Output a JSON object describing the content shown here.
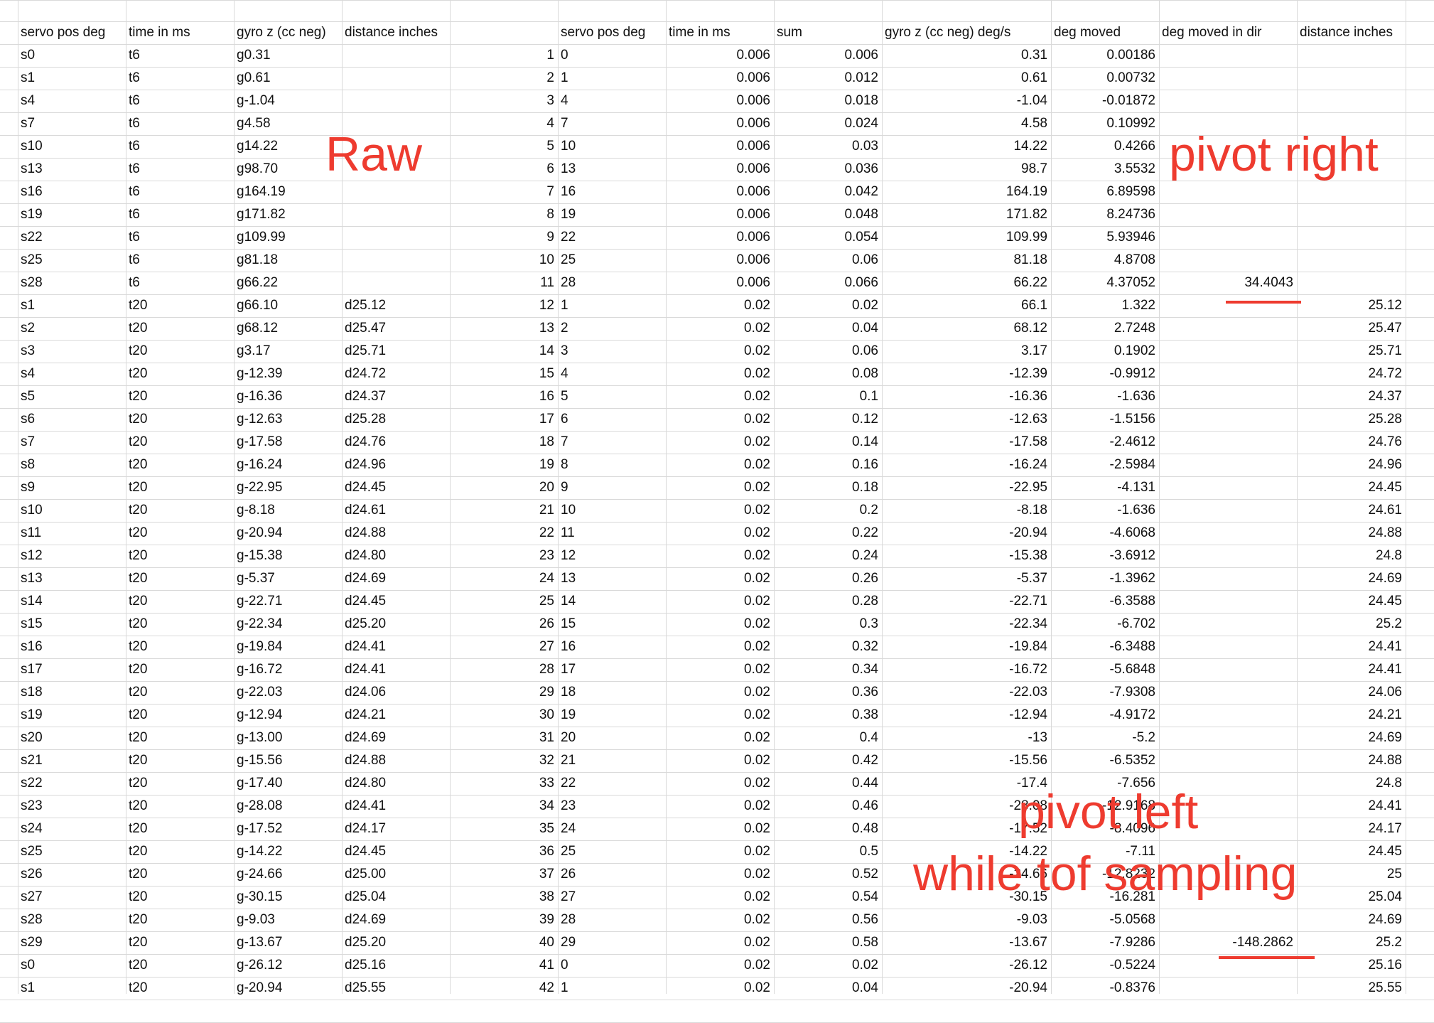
{
  "headers": {
    "left": [
      "servo pos deg",
      "time in ms",
      "gyro z (cc neg)",
      "distance inches"
    ],
    "right": [
      "servo pos deg",
      "time in ms",
      "sum",
      "gyro z (cc neg) deg/s",
      "deg moved",
      "deg moved in dir",
      "distance inches"
    ]
  },
  "rows": [
    [
      "s0",
      "t6",
      "g0.31",
      "",
      "1",
      "0",
      "0.006",
      "0.006",
      "0.31",
      "0.00186",
      "",
      ""
    ],
    [
      "s1",
      "t6",
      "g0.61",
      "",
      "2",
      "1",
      "0.006",
      "0.012",
      "0.61",
      "0.00732",
      "",
      ""
    ],
    [
      "s4",
      "t6",
      "g-1.04",
      "",
      "3",
      "4",
      "0.006",
      "0.018",
      "-1.04",
      "-0.01872",
      "",
      ""
    ],
    [
      "s7",
      "t6",
      "g4.58",
      "",
      "4",
      "7",
      "0.006",
      "0.024",
      "4.58",
      "0.10992",
      "",
      ""
    ],
    [
      "s10",
      "t6",
      "g14.22",
      "",
      "5",
      "10",
      "0.006",
      "0.03",
      "14.22",
      "0.4266",
      "",
      ""
    ],
    [
      "s13",
      "t6",
      "g98.70",
      "",
      "6",
      "13",
      "0.006",
      "0.036",
      "98.7",
      "3.5532",
      "",
      ""
    ],
    [
      "s16",
      "t6",
      "g164.19",
      "",
      "7",
      "16",
      "0.006",
      "0.042",
      "164.19",
      "6.89598",
      "",
      ""
    ],
    [
      "s19",
      "t6",
      "g171.82",
      "",
      "8",
      "19",
      "0.006",
      "0.048",
      "171.82",
      "8.24736",
      "",
      ""
    ],
    [
      "s22",
      "t6",
      "g109.99",
      "",
      "9",
      "22",
      "0.006",
      "0.054",
      "109.99",
      "5.93946",
      "",
      ""
    ],
    [
      "s25",
      "t6",
      "g81.18",
      "",
      "10",
      "25",
      "0.006",
      "0.06",
      "81.18",
      "4.8708",
      "",
      ""
    ],
    [
      "s28",
      "t6",
      "g66.22",
      "",
      "11",
      "28",
      "0.006",
      "0.066",
      "66.22",
      "4.37052",
      "34.4043",
      ""
    ],
    [
      "s1",
      "t20",
      "g66.10",
      "d25.12",
      "12",
      "1",
      "0.02",
      "0.02",
      "66.1",
      "1.322",
      "",
      "25.12"
    ],
    [
      "s2",
      "t20",
      "g68.12",
      "d25.47",
      "13",
      "2",
      "0.02",
      "0.04",
      "68.12",
      "2.7248",
      "",
      "25.47"
    ],
    [
      "s3",
      "t20",
      "g3.17",
      "d25.71",
      "14",
      "3",
      "0.02",
      "0.06",
      "3.17",
      "0.1902",
      "",
      "25.71"
    ],
    [
      "s4",
      "t20",
      "g-12.39",
      "d24.72",
      "15",
      "4",
      "0.02",
      "0.08",
      "-12.39",
      "-0.9912",
      "",
      "24.72"
    ],
    [
      "s5",
      "t20",
      "g-16.36",
      "d24.37",
      "16",
      "5",
      "0.02",
      "0.1",
      "-16.36",
      "-1.636",
      "",
      "24.37"
    ],
    [
      "s6",
      "t20",
      "g-12.63",
      "d25.28",
      "17",
      "6",
      "0.02",
      "0.12",
      "-12.63",
      "-1.5156",
      "",
      "25.28"
    ],
    [
      "s7",
      "t20",
      "g-17.58",
      "d24.76",
      "18",
      "7",
      "0.02",
      "0.14",
      "-17.58",
      "-2.4612",
      "",
      "24.76"
    ],
    [
      "s8",
      "t20",
      "g-16.24",
      "d24.96",
      "19",
      "8",
      "0.02",
      "0.16",
      "-16.24",
      "-2.5984",
      "",
      "24.96"
    ],
    [
      "s9",
      "t20",
      "g-22.95",
      "d24.45",
      "20",
      "9",
      "0.02",
      "0.18",
      "-22.95",
      "-4.131",
      "",
      "24.45"
    ],
    [
      "s10",
      "t20",
      "g-8.18",
      "d24.61",
      "21",
      "10",
      "0.02",
      "0.2",
      "-8.18",
      "-1.636",
      "",
      "24.61"
    ],
    [
      "s11",
      "t20",
      "g-20.94",
      "d24.88",
      "22",
      "11",
      "0.02",
      "0.22",
      "-20.94",
      "-4.6068",
      "",
      "24.88"
    ],
    [
      "s12",
      "t20",
      "g-15.38",
      "d24.80",
      "23",
      "12",
      "0.02",
      "0.24",
      "-15.38",
      "-3.6912",
      "",
      "24.8"
    ],
    [
      "s13",
      "t20",
      "g-5.37",
      "d24.69",
      "24",
      "13",
      "0.02",
      "0.26",
      "-5.37",
      "-1.3962",
      "",
      "24.69"
    ],
    [
      "s14",
      "t20",
      "g-22.71",
      "d24.45",
      "25",
      "14",
      "0.02",
      "0.28",
      "-22.71",
      "-6.3588",
      "",
      "24.45"
    ],
    [
      "s15",
      "t20",
      "g-22.34",
      "d25.20",
      "26",
      "15",
      "0.02",
      "0.3",
      "-22.34",
      "-6.702",
      "",
      "25.2"
    ],
    [
      "s16",
      "t20",
      "g-19.84",
      "d24.41",
      "27",
      "16",
      "0.02",
      "0.32",
      "-19.84",
      "-6.3488",
      "",
      "24.41"
    ],
    [
      "s17",
      "t20",
      "g-16.72",
      "d24.41",
      "28",
      "17",
      "0.02",
      "0.34",
      "-16.72",
      "-5.6848",
      "",
      "24.41"
    ],
    [
      "s18",
      "t20",
      "g-22.03",
      "d24.06",
      "29",
      "18",
      "0.02",
      "0.36",
      "-22.03",
      "-7.9308",
      "",
      "24.06"
    ],
    [
      "s19",
      "t20",
      "g-12.94",
      "d24.21",
      "30",
      "19",
      "0.02",
      "0.38",
      "-12.94",
      "-4.9172",
      "",
      "24.21"
    ],
    [
      "s20",
      "t20",
      "g-13.00",
      "d24.69",
      "31",
      "20",
      "0.02",
      "0.4",
      "-13",
      "-5.2",
      "",
      "24.69"
    ],
    [
      "s21",
      "t20",
      "g-15.56",
      "d24.88",
      "32",
      "21",
      "0.02",
      "0.42",
      "-15.56",
      "-6.5352",
      "",
      "24.88"
    ],
    [
      "s22",
      "t20",
      "g-17.40",
      "d24.80",
      "33",
      "22",
      "0.02",
      "0.44",
      "-17.4",
      "-7.656",
      "",
      "24.8"
    ],
    [
      "s23",
      "t20",
      "g-28.08",
      "d24.41",
      "34",
      "23",
      "0.02",
      "0.46",
      "-28.08",
      "-12.9168",
      "",
      "24.41"
    ],
    [
      "s24",
      "t20",
      "g-17.52",
      "d24.17",
      "35",
      "24",
      "0.02",
      "0.48",
      "-17.52",
      "-8.4096",
      "",
      "24.17"
    ],
    [
      "s25",
      "t20",
      "g-14.22",
      "d24.45",
      "36",
      "25",
      "0.02",
      "0.5",
      "-14.22",
      "-7.11",
      "",
      "24.45"
    ],
    [
      "s26",
      "t20",
      "g-24.66",
      "d25.00",
      "37",
      "26",
      "0.02",
      "0.52",
      "-24.66",
      "-12.8232",
      "",
      "25"
    ],
    [
      "s27",
      "t20",
      "g-30.15",
      "d25.04",
      "38",
      "27",
      "0.02",
      "0.54",
      "-30.15",
      "-16.281",
      "",
      "25.04"
    ],
    [
      "s28",
      "t20",
      "g-9.03",
      "d24.69",
      "39",
      "28",
      "0.02",
      "0.56",
      "-9.03",
      "-5.0568",
      "",
      "24.69"
    ],
    [
      "s29",
      "t20",
      "g-13.67",
      "d25.20",
      "40",
      "29",
      "0.02",
      "0.58",
      "-13.67",
      "-7.9286",
      "-148.2862",
      "25.2"
    ],
    [
      "s0",
      "t20",
      "g-26.12",
      "d25.16",
      "41",
      "0",
      "0.02",
      "0.02",
      "-26.12",
      "-0.5224",
      "",
      "25.16"
    ],
    [
      "s1",
      "t20",
      "g-20.94",
      "d25.55",
      "42",
      "1",
      "0.02",
      "0.04",
      "-20.94",
      "-0.8376",
      "",
      "25.55"
    ]
  ],
  "annotations": {
    "raw": "Raw",
    "pivot_right": "pivot right",
    "pivot_left": "pivot left",
    "while_tof": "while tof sampling"
  },
  "colors": {
    "grid": "#d9d9d9",
    "annotation": "#ee3b2f",
    "text": "#111111"
  }
}
